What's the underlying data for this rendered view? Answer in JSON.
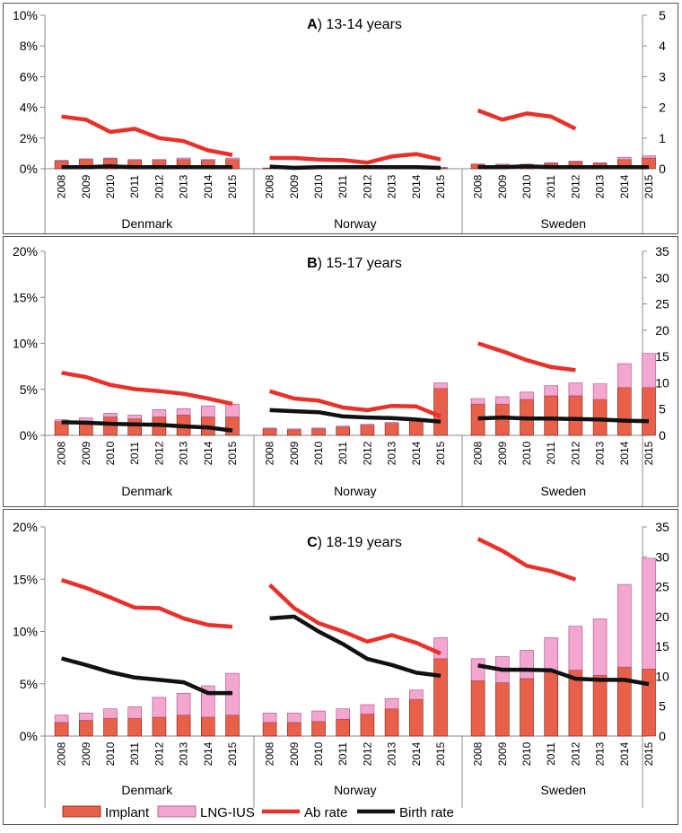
{
  "chart_data": [
    {
      "type": "bar",
      "title_letter": "A",
      "title_rest": ") 13-14 years",
      "ylim_left": [
        0,
        10
      ],
      "yticks_left": [
        "0%",
        "2%",
        "4%",
        "6%",
        "8%",
        "10%"
      ],
      "ylim_right": [
        0,
        5
      ],
      "yticks_right": [
        "0",
        "1",
        "2",
        "3",
        "4",
        "5"
      ],
      "countries": [
        "Denmark",
        "Norway",
        "Sweden"
      ],
      "years": [
        "2008",
        "2009",
        "2010",
        "2011",
        "2012",
        "2013",
        "2014",
        "2015"
      ],
      "implant": [
        [
          0.5,
          0.6,
          0.65,
          0.55,
          0.55,
          0.6,
          0.55,
          0.6
        ],
        [
          0.05,
          0.05,
          0.05,
          0.05,
          0.05,
          0.05,
          0.05,
          0.05
        ],
        [
          0.3,
          0.25,
          0.25,
          0.35,
          0.45,
          0.35,
          0.6,
          0.7
        ]
      ],
      "lng_ius": [
        [
          0.05,
          0.05,
          0.05,
          0.05,
          0.05,
          0.1,
          0.05,
          0.1
        ],
        [
          0,
          0,
          0,
          0,
          0,
          0,
          0,
          0.05
        ],
        [
          0,
          0.05,
          0.05,
          0.05,
          0.05,
          0.05,
          0.15,
          0.15
        ]
      ],
      "ab_rate": [
        [
          1.7,
          1.6,
          1.2,
          1.3,
          1.0,
          0.9,
          0.6,
          0.45
        ],
        [
          0.35,
          0.35,
          0.3,
          0.28,
          0.2,
          0.4,
          0.48,
          0.3
        ],
        [
          1.9,
          1.6,
          1.8,
          1.7,
          1.3,
          null,
          null,
          null
        ]
      ],
      "birth_rate": [
        [
          0.05,
          0.05,
          0.08,
          0.05,
          0.05,
          0.05,
          0.05,
          0.05
        ],
        [
          0.07,
          0.03,
          0.05,
          0.05,
          0.05,
          0.05,
          0.05,
          0.03
        ],
        [
          0.05,
          0.05,
          0.08,
          0.05,
          0.05,
          0.05,
          0.05,
          0.05
        ]
      ]
    },
    {
      "type": "bar",
      "title_letter": "B",
      "title_rest": ") 15-17 years",
      "ylim_left": [
        0,
        20
      ],
      "yticks_left": [
        "0%",
        "5%",
        "10%",
        "15%",
        "20%"
      ],
      "ylim_right": [
        0,
        35
      ],
      "yticks_right": [
        "0",
        "5",
        "10",
        "15",
        "20",
        "25",
        "30",
        "35"
      ],
      "countries": [
        "Denmark",
        "Norway",
        "Sweden"
      ],
      "years": [
        "2008",
        "2009",
        "2010",
        "2011",
        "2012",
        "2013",
        "2014",
        "2015"
      ],
      "implant": [
        [
          1.5,
          1.5,
          2.0,
          1.8,
          2.0,
          2.2,
          2.0,
          2.0
        ],
        [
          0.7,
          0.6,
          0.7,
          0.9,
          1.1,
          1.3,
          1.6,
          5.1
        ],
        [
          3.4,
          3.4,
          3.9,
          4.3,
          4.3,
          3.9,
          5.2,
          5.2
        ]
      ],
      "lng_ius": [
        [
          0.2,
          0.4,
          0.4,
          0.4,
          0.8,
          0.7,
          1.2,
          1.4
        ],
        [
          0.1,
          0.1,
          0.1,
          0.1,
          0.1,
          0.1,
          0.2,
          0.6
        ],
        [
          0.6,
          0.8,
          0.8,
          1.1,
          1.4,
          1.7,
          2.6,
          3.7
        ]
      ],
      "ab_rate": [
        [
          11.9,
          11.1,
          9.6,
          8.8,
          8.4,
          7.9,
          7.0,
          6.0
        ],
        [
          8.4,
          7.0,
          6.6,
          5.3,
          4.8,
          5.6,
          5.5,
          3.6
        ],
        [
          17.5,
          16.0,
          14.3,
          13.0,
          12.4,
          null,
          null,
          null
        ]
      ],
      "birth_rate": [
        [
          2.5,
          2.4,
          2.2,
          2.1,
          2.0,
          1.7,
          1.5,
          0.9
        ],
        [
          4.8,
          4.6,
          4.4,
          3.6,
          3.4,
          3.3,
          3.0,
          2.6
        ],
        [
          3.2,
          3.4,
          3.2,
          3.2,
          3.1,
          3.0,
          2.8,
          2.7
        ]
      ]
    },
    {
      "type": "bar",
      "title_letter": "C",
      "title_rest": ") 18-19 years",
      "ylim_left": [
        0,
        20
      ],
      "yticks_left": [
        "0%",
        "5%",
        "10%",
        "15%",
        "20%"
      ],
      "ylim_right": [
        0,
        35
      ],
      "yticks_right": [
        "0",
        "5",
        "10",
        "15",
        "20",
        "25",
        "30",
        "35"
      ],
      "countries": [
        "Denmark",
        "Norway",
        "Sweden"
      ],
      "years": [
        "2008",
        "2009",
        "2010",
        "2011",
        "2012",
        "2013",
        "2014",
        "2015"
      ],
      "implant": [
        [
          1.3,
          1.5,
          1.7,
          1.7,
          1.8,
          2.0,
          1.8,
          2.0
        ],
        [
          1.3,
          1.3,
          1.4,
          1.6,
          2.1,
          2.6,
          3.5,
          7.4
        ],
        [
          5.3,
          5.1,
          5.5,
          6.1,
          6.3,
          5.8,
          6.6,
          6.4
        ]
      ],
      "lng_ius": [
        [
          0.7,
          0.7,
          0.9,
          1.1,
          1.9,
          2.1,
          3.0,
          4.0
        ],
        [
          0.9,
          0.9,
          1.0,
          1.0,
          0.9,
          1.0,
          0.9,
          2.0
        ],
        [
          2.1,
          2.5,
          2.7,
          3.3,
          4.2,
          5.4,
          7.9,
          10.6
        ]
      ],
      "ab_rate": [
        [
          26.1,
          24.8,
          23.2,
          21.5,
          21.4,
          19.7,
          18.6,
          18.3
        ],
        [
          25.3,
          21.4,
          18.9,
          17.5,
          15.8,
          16.9,
          15.6,
          13.8
        ],
        [
          33.0,
          31.0,
          28.5,
          27.6,
          26.2,
          null,
          null,
          null
        ]
      ],
      "birth_rate": [
        [
          13.0,
          11.9,
          10.7,
          9.8,
          9.4,
          9.0,
          7.2,
          7.2
        ],
        [
          19.7,
          20.0,
          17.5,
          15.4,
          12.9,
          11.9,
          10.6,
          10.1
        ],
        [
          11.8,
          11.1,
          11.1,
          11.0,
          9.6,
          9.4,
          9.4,
          8.7
        ]
      ]
    }
  ],
  "legend": [
    {
      "label": "Implant",
      "kind": "bar",
      "color": "#e8604a"
    },
    {
      "label": "LNG-IUS",
      "kind": "bar",
      "color": "#f3a6cf"
    },
    {
      "label": "Ab rate",
      "kind": "line",
      "color": "#e8312a"
    },
    {
      "label": "Birth rate",
      "kind": "line",
      "color": "#111111"
    }
  ],
  "colors": {
    "implant": "#e8604a",
    "implant_edge": "#7a1f10",
    "lng_ius": "#f3a6cf",
    "lng_ius_edge": "#a05080",
    "ab_rate": "#e8312a",
    "birth_rate": "#111111",
    "axis": "#8a8a8a",
    "frame": "#555555"
  }
}
